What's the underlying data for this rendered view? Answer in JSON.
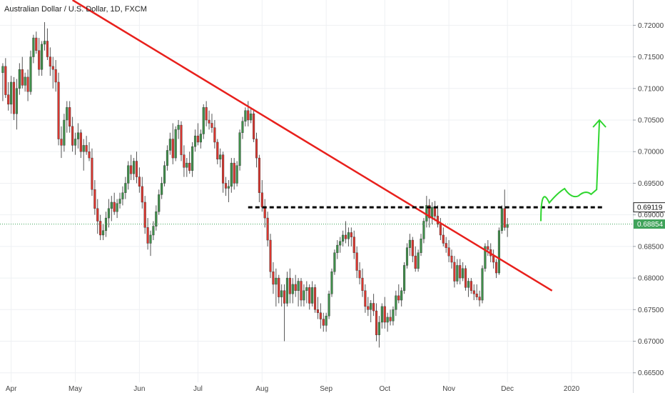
{
  "header": {
    "title": "Australian Dollar / U.S. Dollar, 1D, FXCM"
  },
  "colors": {
    "up": "#3f8f4a",
    "down": "#d9362f",
    "wick": "#555555",
    "trendline": "#e8201c",
    "resistance": "#000000",
    "projection": "#2fd62f",
    "price_tag": "#3fa35a",
    "level_tag": "#ffffff",
    "grid": "#eef0f3"
  },
  "chart_data": {
    "type": "candlestick",
    "title": "Australian Dollar / U.S. Dollar, 1D, FXCM",
    "ylim": [
      0.6635,
      0.724
    ],
    "xlim": [
      0,
      227
    ],
    "y_ticks": [
      "0.72000",
      "0.71500",
      "0.71000",
      "0.70500",
      "0.70000",
      "0.69500",
      "0.69000",
      "0.68500",
      "0.68000",
      "0.67500",
      "0.67000",
      "0.66500"
    ],
    "x_ticks": [
      {
        "label": "Apr",
        "day": 4
      },
      {
        "label": "May",
        "day": 27
      },
      {
        "label": "Jun",
        "day": 50
      },
      {
        "label": "Jul",
        "day": 71
      },
      {
        "label": "Aug",
        "day": 94
      },
      {
        "label": "Sep",
        "day": 117
      },
      {
        "label": "Oct",
        "day": 138
      },
      {
        "label": "Nov",
        "day": 161
      },
      {
        "label": "Dec",
        "day": 182
      },
      {
        "label": "2020",
        "day": 205
      }
    ],
    "current_price": "0.68854",
    "resistance_level": "0.69119",
    "trendline": {
      "start": [
        26,
        0.724
      ],
      "end": [
        198,
        0.678
      ]
    },
    "resistance_line": {
      "from_day": 89,
      "to_day": 216,
      "price": 0.69119
    },
    "projection": [
      [
        194,
        0.689
      ],
      [
        200,
        0.6948
      ],
      [
        205,
        0.6935
      ],
      [
        210,
        0.6925
      ],
      [
        214,
        0.694
      ],
      [
        215,
        0.705
      ]
    ],
    "candles": [
      [
        0.7125,
        0.714,
        0.708,
        0.7135
      ],
      [
        0.7135,
        0.7148,
        0.7085,
        0.709
      ],
      [
        0.709,
        0.711,
        0.7065,
        0.7075
      ],
      [
        0.7075,
        0.712,
        0.706,
        0.711
      ],
      [
        0.711,
        0.7118,
        0.705,
        0.706
      ],
      [
        0.706,
        0.7115,
        0.7035,
        0.71
      ],
      [
        0.71,
        0.714,
        0.709,
        0.713
      ],
      [
        0.713,
        0.715,
        0.71,
        0.7105
      ],
      [
        0.7105,
        0.7125,
        0.7095,
        0.7118
      ],
      [
        0.7118,
        0.713,
        0.708,
        0.7095
      ],
      [
        0.7095,
        0.716,
        0.709,
        0.715
      ],
      [
        0.715,
        0.7185,
        0.714,
        0.718
      ],
      [
        0.718,
        0.719,
        0.7155,
        0.716
      ],
      [
        0.716,
        0.718,
        0.712,
        0.713
      ],
      [
        0.713,
        0.7175,
        0.712,
        0.717
      ],
      [
        0.717,
        0.7205,
        0.716,
        0.7175
      ],
      [
        0.7175,
        0.7195,
        0.7145,
        0.715
      ],
      [
        0.715,
        0.7165,
        0.712,
        0.7135
      ],
      [
        0.7135,
        0.715,
        0.71,
        0.713
      ],
      [
        0.713,
        0.7145,
        0.7095,
        0.711
      ],
      [
        0.711,
        0.7125,
        0.701,
        0.702
      ],
      [
        0.702,
        0.704,
        0.699,
        0.701
      ],
      [
        0.701,
        0.706,
        0.7,
        0.705
      ],
      [
        0.705,
        0.708,
        0.703,
        0.707
      ],
      [
        0.707,
        0.708,
        0.703,
        0.704
      ],
      [
        0.704,
        0.7055,
        0.7,
        0.701
      ],
      [
        0.701,
        0.703,
        0.6995,
        0.702
      ],
      [
        0.702,
        0.7045,
        0.7005,
        0.703
      ],
      [
        0.703,
        0.7035,
        0.699,
        0.7
      ],
      [
        0.7,
        0.702,
        0.697,
        0.701
      ],
      [
        0.701,
        0.7025,
        0.6995,
        0.7
      ],
      [
        0.7,
        0.7015,
        0.6985,
        0.699
      ],
      [
        0.699,
        0.7005,
        0.693,
        0.694
      ],
      [
        0.694,
        0.6955,
        0.69,
        0.691
      ],
      [
        0.691,
        0.6925,
        0.687,
        0.689
      ],
      [
        0.689,
        0.69,
        0.686,
        0.6868
      ],
      [
        0.6868,
        0.6885,
        0.686,
        0.6875
      ],
      [
        0.6875,
        0.6905,
        0.6865,
        0.6895
      ],
      [
        0.6895,
        0.6925,
        0.688,
        0.691
      ],
      [
        0.691,
        0.693,
        0.689,
        0.692
      ],
      [
        0.692,
        0.6935,
        0.69,
        0.6905
      ],
      [
        0.6905,
        0.6925,
        0.6895,
        0.6918
      ],
      [
        0.6918,
        0.6935,
        0.691,
        0.6925
      ],
      [
        0.6925,
        0.6945,
        0.6915,
        0.6935
      ],
      [
        0.6935,
        0.696,
        0.6925,
        0.695
      ],
      [
        0.695,
        0.6985,
        0.694,
        0.6978
      ],
      [
        0.6978,
        0.6995,
        0.6955,
        0.6965
      ],
      [
        0.6965,
        0.699,
        0.6955,
        0.6985
      ],
      [
        0.6985,
        0.7,
        0.695,
        0.696
      ],
      [
        0.696,
        0.6975,
        0.6935,
        0.6945
      ],
      [
        0.6945,
        0.696,
        0.691,
        0.692
      ],
      [
        0.692,
        0.693,
        0.687,
        0.688
      ],
      [
        0.688,
        0.6895,
        0.6845,
        0.6855
      ],
      [
        0.6855,
        0.6875,
        0.6835,
        0.6868
      ],
      [
        0.6868,
        0.689,
        0.686,
        0.6882
      ],
      [
        0.6882,
        0.6915,
        0.6875,
        0.6905
      ],
      [
        0.6905,
        0.694,
        0.69,
        0.6932
      ],
      [
        0.6932,
        0.696,
        0.6925,
        0.695
      ],
      [
        0.695,
        0.6985,
        0.6945,
        0.6978
      ],
      [
        0.6978,
        0.701,
        0.697,
        0.7002
      ],
      [
        0.7002,
        0.703,
        0.6995,
        0.702
      ],
      [
        0.702,
        0.7045,
        0.698,
        0.699
      ],
      [
        0.699,
        0.704,
        0.6985,
        0.7035
      ],
      [
        0.7035,
        0.705,
        0.702,
        0.7042
      ],
      [
        0.7042,
        0.7048,
        0.6985,
        0.6995
      ],
      [
        0.6995,
        0.701,
        0.696,
        0.6975
      ],
      [
        0.6975,
        0.699,
        0.696,
        0.6982
      ],
      [
        0.6982,
        0.7,
        0.6965,
        0.697
      ],
      [
        0.697,
        0.7015,
        0.696,
        0.7008
      ],
      [
        0.7008,
        0.7035,
        0.7,
        0.7025
      ],
      [
        0.7025,
        0.7045,
        0.701,
        0.7015
      ],
      [
        0.7015,
        0.7035,
        0.7005,
        0.7028
      ],
      [
        0.7028,
        0.7075,
        0.702,
        0.707
      ],
      [
        0.707,
        0.708,
        0.704,
        0.705
      ],
      [
        0.705,
        0.7065,
        0.7035,
        0.7045
      ],
      [
        0.7045,
        0.706,
        0.703,
        0.7038
      ],
      [
        0.7038,
        0.705,
        0.7005,
        0.7015
      ],
      [
        0.7015,
        0.702,
        0.698,
        0.6988
      ],
      [
        0.6988,
        0.7005,
        0.6975,
        0.6995
      ],
      [
        0.6995,
        0.7,
        0.6935,
        0.695
      ],
      [
        0.695,
        0.696,
        0.693,
        0.6942
      ],
      [
        0.6942,
        0.6955,
        0.692,
        0.6945
      ],
      [
        0.6945,
        0.699,
        0.6935,
        0.6982
      ],
      [
        0.6982,
        0.699,
        0.694,
        0.695
      ],
      [
        0.695,
        0.6985,
        0.6945,
        0.6978
      ],
      [
        0.6978,
        0.7035,
        0.697,
        0.703
      ],
      [
        0.703,
        0.7055,
        0.702,
        0.7048
      ],
      [
        0.7048,
        0.707,
        0.704,
        0.7065
      ],
      [
        0.7065,
        0.708,
        0.704,
        0.705
      ],
      [
        0.705,
        0.707,
        0.7045,
        0.706
      ],
      [
        0.706,
        0.7065,
        0.7015,
        0.702
      ],
      [
        0.702,
        0.703,
        0.6975,
        0.699
      ],
      [
        0.699,
        0.6995,
        0.692,
        0.6935
      ],
      [
        0.6935,
        0.6955,
        0.6905,
        0.6912
      ],
      [
        0.6912,
        0.6925,
        0.688,
        0.6895
      ],
      [
        0.6895,
        0.6905,
        0.685,
        0.686
      ],
      [
        0.686,
        0.687,
        0.68,
        0.681
      ],
      [
        0.681,
        0.6825,
        0.6775,
        0.679
      ],
      [
        0.679,
        0.6815,
        0.6755,
        0.68
      ],
      [
        0.68,
        0.6805,
        0.676,
        0.677
      ],
      [
        0.677,
        0.679,
        0.6755,
        0.678
      ],
      [
        0.678,
        0.679,
        0.67,
        0.676
      ],
      [
        0.676,
        0.681,
        0.6755,
        0.68
      ],
      [
        0.68,
        0.6815,
        0.676,
        0.6775
      ],
      [
        0.6775,
        0.68,
        0.676,
        0.679
      ],
      [
        0.679,
        0.6805,
        0.677,
        0.678
      ],
      [
        0.678,
        0.68,
        0.6755,
        0.6795
      ],
      [
        0.6795,
        0.68,
        0.6755,
        0.6765
      ],
      [
        0.6765,
        0.679,
        0.6755,
        0.678
      ],
      [
        0.678,
        0.6795,
        0.676,
        0.6785
      ],
      [
        0.6785,
        0.679,
        0.675,
        0.676
      ],
      [
        0.676,
        0.6795,
        0.6755,
        0.6785
      ],
      [
        0.6785,
        0.679,
        0.6745,
        0.675
      ],
      [
        0.675,
        0.677,
        0.6735,
        0.6745
      ],
      [
        0.6745,
        0.676,
        0.672,
        0.6735
      ],
      [
        0.6735,
        0.6745,
        0.6715,
        0.6725
      ],
      [
        0.6725,
        0.6745,
        0.6715,
        0.674
      ],
      [
        0.674,
        0.678,
        0.6735,
        0.6775
      ],
      [
        0.6775,
        0.6815,
        0.677,
        0.681
      ],
      [
        0.681,
        0.6845,
        0.6805,
        0.684
      ],
      [
        0.684,
        0.686,
        0.683,
        0.6852
      ],
      [
        0.6852,
        0.6865,
        0.684,
        0.6858
      ],
      [
        0.6858,
        0.6875,
        0.685,
        0.6868
      ],
      [
        0.6868,
        0.689,
        0.6855,
        0.6862
      ],
      [
        0.6862,
        0.688,
        0.685,
        0.6872
      ],
      [
        0.6872,
        0.688,
        0.685,
        0.6865
      ],
      [
        0.6865,
        0.6875,
        0.683,
        0.684
      ],
      [
        0.684,
        0.685,
        0.68,
        0.6812
      ],
      [
        0.6812,
        0.6825,
        0.679,
        0.68
      ],
      [
        0.68,
        0.6815,
        0.677,
        0.678
      ],
      [
        0.678,
        0.679,
        0.6745,
        0.6755
      ],
      [
        0.6755,
        0.677,
        0.674,
        0.675
      ],
      [
        0.675,
        0.6765,
        0.673,
        0.676
      ],
      [
        0.676,
        0.6775,
        0.674,
        0.6748
      ],
      [
        0.6748,
        0.676,
        0.67,
        0.671
      ],
      [
        0.671,
        0.674,
        0.669,
        0.673
      ],
      [
        0.673,
        0.676,
        0.672,
        0.6755
      ],
      [
        0.6755,
        0.677,
        0.672,
        0.673
      ],
      [
        0.673,
        0.6745,
        0.6715,
        0.6738
      ],
      [
        0.6738,
        0.675,
        0.6725,
        0.6732
      ],
      [
        0.6732,
        0.6755,
        0.6725,
        0.675
      ],
      [
        0.675,
        0.678,
        0.674,
        0.6772
      ],
      [
        0.6772,
        0.679,
        0.676,
        0.6765
      ],
      [
        0.6765,
        0.6785,
        0.6755,
        0.678
      ],
      [
        0.678,
        0.6825,
        0.6775,
        0.682
      ],
      [
        0.682,
        0.6855,
        0.6815,
        0.6848
      ],
      [
        0.6848,
        0.687,
        0.6835,
        0.686
      ],
      [
        0.686,
        0.6865,
        0.6825,
        0.6835
      ],
      [
        0.6835,
        0.685,
        0.681,
        0.6815
      ],
      [
        0.6815,
        0.6845,
        0.681,
        0.684
      ],
      [
        0.684,
        0.687,
        0.6835,
        0.6862
      ],
      [
        0.6862,
        0.6895,
        0.6855,
        0.689
      ],
      [
        0.689,
        0.693,
        0.688,
        0.6915
      ],
      [
        0.6915,
        0.6925,
        0.688,
        0.6895
      ],
      [
        0.6895,
        0.692,
        0.6885,
        0.6912
      ],
      [
        0.6912,
        0.6922,
        0.689,
        0.6898
      ],
      [
        0.6898,
        0.6915,
        0.688,
        0.6885
      ],
      [
        0.6885,
        0.6895,
        0.686,
        0.6868
      ],
      [
        0.6868,
        0.688,
        0.685,
        0.6855
      ],
      [
        0.6855,
        0.6865,
        0.684,
        0.6848
      ],
      [
        0.6848,
        0.686,
        0.6825,
        0.6835
      ],
      [
        0.6835,
        0.6845,
        0.6815,
        0.6825
      ],
      [
        0.6825,
        0.6835,
        0.6785,
        0.6795
      ],
      [
        0.6795,
        0.683,
        0.679,
        0.682
      ],
      [
        0.682,
        0.683,
        0.679,
        0.68
      ],
      [
        0.68,
        0.6825,
        0.6795,
        0.6815
      ],
      [
        0.6815,
        0.682,
        0.678,
        0.6785
      ],
      [
        0.6785,
        0.68,
        0.677,
        0.6795
      ],
      [
        0.6795,
        0.68,
        0.6775,
        0.678
      ],
      [
        0.678,
        0.679,
        0.6765,
        0.6775
      ],
      [
        0.6775,
        0.679,
        0.6765,
        0.677
      ],
      [
        0.677,
        0.678,
        0.6755,
        0.6765
      ],
      [
        0.6765,
        0.682,
        0.676,
        0.6815
      ],
      [
        0.6815,
        0.6855,
        0.681,
        0.685
      ],
      [
        0.685,
        0.686,
        0.6835,
        0.6845
      ],
      [
        0.6845,
        0.6855,
        0.6825,
        0.6835
      ],
      [
        0.6835,
        0.6845,
        0.6815,
        0.6825
      ],
      [
        0.6825,
        0.683,
        0.68,
        0.6808
      ],
      [
        0.6808,
        0.688,
        0.6805,
        0.6875
      ],
      [
        0.6875,
        0.6915,
        0.687,
        0.691
      ],
      [
        0.691,
        0.694,
        0.6875,
        0.688
      ],
      [
        0.688,
        0.6895,
        0.6865,
        0.6885
      ]
    ]
  }
}
